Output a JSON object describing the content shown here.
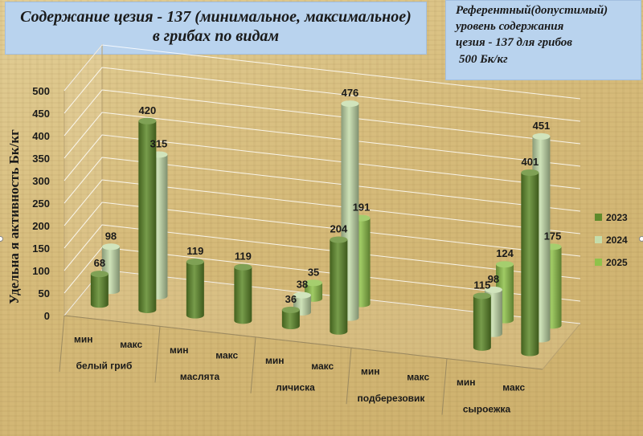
{
  "title": {
    "line1": "Содержание цезия - 137 (минимальное, максимальное)",
    "line2": "в грибах по видам"
  },
  "reference": {
    "line1": "Референтный(допустимый)",
    "line2": "уровень содержания",
    "line3": "цезия - 137 для грибов",
    "line4": "500 Бк/кг"
  },
  "chart_data": {
    "type": "bar",
    "ylabel": "Удельна я активность Бк/кг",
    "ylim": [
      0,
      500
    ],
    "yticks": [
      "0",
      "50",
      "100",
      "150",
      "200",
      "250",
      "300",
      "350",
      "400",
      "450",
      "500"
    ],
    "groups": [
      "белый гриб",
      "маслята",
      "личиска",
      "подберезовик",
      "сыроежка"
    ],
    "categories": [
      "мин",
      "макс",
      "мин",
      "макс",
      "мин",
      "макс",
      "мин",
      "макс",
      "мин",
      "макс"
    ],
    "series": [
      {
        "name": "2023",
        "color": "#5f8a2b",
        "values": [
          68,
          420,
          119,
          119,
          36,
          204,
          null,
          null,
          115,
          401
        ]
      },
      {
        "name": "2024",
        "color": "#c5ddab",
        "values": [
          98,
          315,
          null,
          null,
          38,
          476,
          null,
          null,
          98,
          451
        ]
      },
      {
        "name": "2025",
        "color": "#8fc24a",
        "values": [
          null,
          null,
          null,
          null,
          35,
          191,
          null,
          null,
          124,
          175
        ]
      }
    ],
    "legend_position": "right",
    "grid": true
  }
}
